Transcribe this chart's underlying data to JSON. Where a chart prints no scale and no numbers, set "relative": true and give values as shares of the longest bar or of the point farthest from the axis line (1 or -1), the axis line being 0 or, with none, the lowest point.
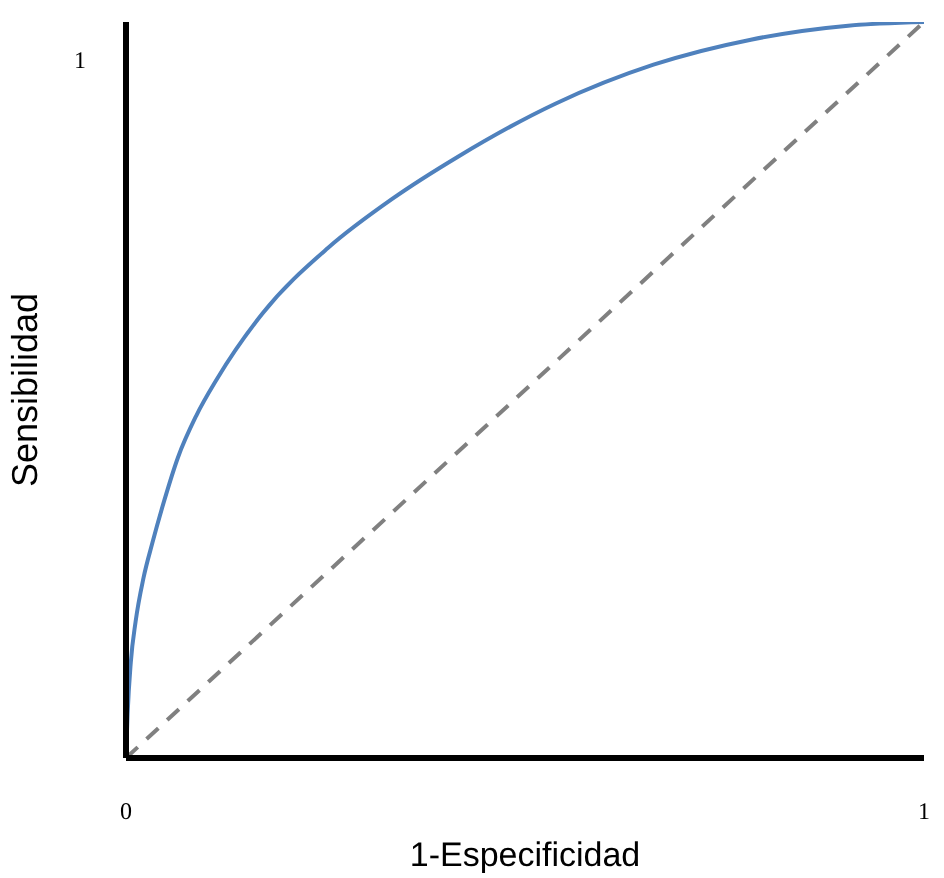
{
  "chart_data": {
    "type": "line",
    "xlabel": "1-Especificidad",
    "ylabel": "Sensibilidad",
    "relative": true,
    "annotations": [
      "1"
    ],
    "xlim": [
      0,
      1
    ],
    "xticks": [
      0,
      1
    ],
    "grid": false,
    "legend": false,
    "marker": "none",
    "series": [
      {
        "color": "#4f81bd",
        "line_style": "solid",
        "x": [
          0,
          0.002,
          0.006,
          0.012,
          0.022,
          0.033,
          0.048,
          0.065,
          0.088,
          0.114,
          0.171,
          0.253,
          0.334,
          0.416,
          0.538,
          0.661,
          0.783,
          0.905,
          1
        ],
        "values": [
          0,
          0.06,
          0.13,
          0.185,
          0.245,
          0.292,
          0.35,
          0.408,
          0.465,
          0.515,
          0.604,
          0.693,
          0.76,
          0.817,
          0.889,
          0.942,
          0.976,
          0.995,
          1
        ]
      },
      {
        "color": "#808080",
        "line_style": "dashed",
        "x": [
          0,
          1
        ],
        "values": [
          0,
          1
        ]
      }
    ]
  }
}
